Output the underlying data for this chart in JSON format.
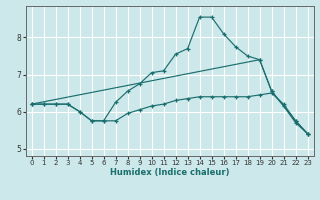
{
  "xlabel": "Humidex (Indice chaleur)",
  "xlim": [
    -0.5,
    23.5
  ],
  "ylim": [
    4.8,
    8.85
  ],
  "yticks": [
    5,
    6,
    7,
    8
  ],
  "xticks": [
    0,
    1,
    2,
    3,
    4,
    5,
    6,
    7,
    8,
    9,
    10,
    11,
    12,
    13,
    14,
    15,
    16,
    17,
    18,
    19,
    20,
    21,
    22,
    23
  ],
  "bg_color": "#cde8ea",
  "line_color": "#1a6e6e",
  "grid_color": "#ffffff",
  "lines": [
    {
      "x": [
        0,
        1,
        2,
        3,
        4,
        5,
        6,
        7,
        8,
        9,
        10,
        11,
        12,
        13,
        14,
        15,
        16,
        17,
        18,
        19,
        20,
        21,
        22,
        23
      ],
      "y": [
        6.2,
        6.2,
        6.2,
        6.2,
        6.0,
        5.75,
        5.75,
        6.25,
        6.55,
        6.75,
        7.05,
        7.1,
        7.55,
        7.7,
        8.55,
        8.55,
        8.1,
        7.75,
        7.5,
        7.4,
        6.55,
        6.15,
        5.7,
        5.4
      ]
    },
    {
      "x": [
        0,
        1,
        2,
        3,
        4,
        5,
        6,
        7,
        8,
        9,
        10,
        11,
        12,
        13,
        14,
        15,
        16,
        17,
        18,
        19,
        20,
        21,
        22,
        23
      ],
      "y": [
        6.2,
        6.2,
        6.2,
        6.2,
        6.0,
        5.75,
        5.75,
        5.75,
        5.95,
        6.05,
        6.15,
        6.2,
        6.3,
        6.35,
        6.4,
        6.4,
        6.4,
        6.4,
        6.4,
        6.45,
        6.5,
        6.2,
        5.75,
        5.4
      ]
    },
    {
      "x": [
        0,
        19,
        20,
        22,
        23
      ],
      "y": [
        6.2,
        7.4,
        6.55,
        5.75,
        5.4
      ]
    }
  ]
}
